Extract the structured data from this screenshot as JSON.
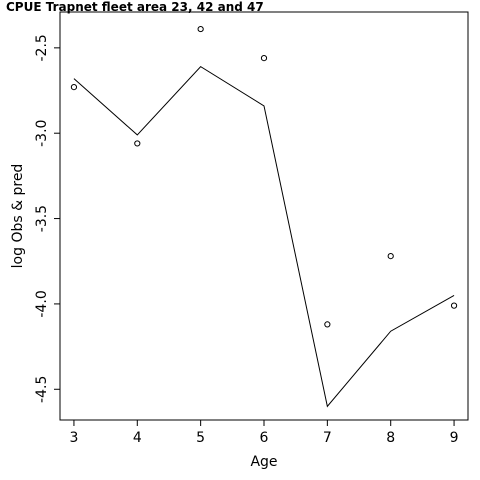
{
  "chart_data": {
    "type": "line",
    "title": "CPUE Trapnet fleet area 23, 42 and 47",
    "xlabel": "Age",
    "ylabel": "log Obs & pred",
    "x": [
      3,
      4,
      5,
      6,
      7,
      8,
      9
    ],
    "xticks": [
      "3",
      "4",
      "5",
      "6",
      "7",
      "8",
      "9"
    ],
    "yticks": [
      -2.5,
      -3.0,
      -3.5,
      -4.0,
      -4.5
    ],
    "ytick_labels": [
      "-2.5",
      "-3.0",
      "-3.5",
      "-4.0",
      "-4.5"
    ],
    "xlim": [
      2.78,
      9.22
    ],
    "ylim": [
      -4.68,
      -2.29
    ],
    "grid": false,
    "series": [
      {
        "style": "line",
        "color": "#000000",
        "values": [
          -2.68,
          -3.01,
          -2.61,
          -2.84,
          -4.6,
          -4.16,
          -3.95
        ]
      },
      {
        "style": "points",
        "marker": "open-circle",
        "color": "#000000",
        "values": [
          -2.73,
          -3.06,
          -2.39,
          -2.56,
          -4.12,
          -3.72,
          -4.01
        ]
      }
    ]
  }
}
